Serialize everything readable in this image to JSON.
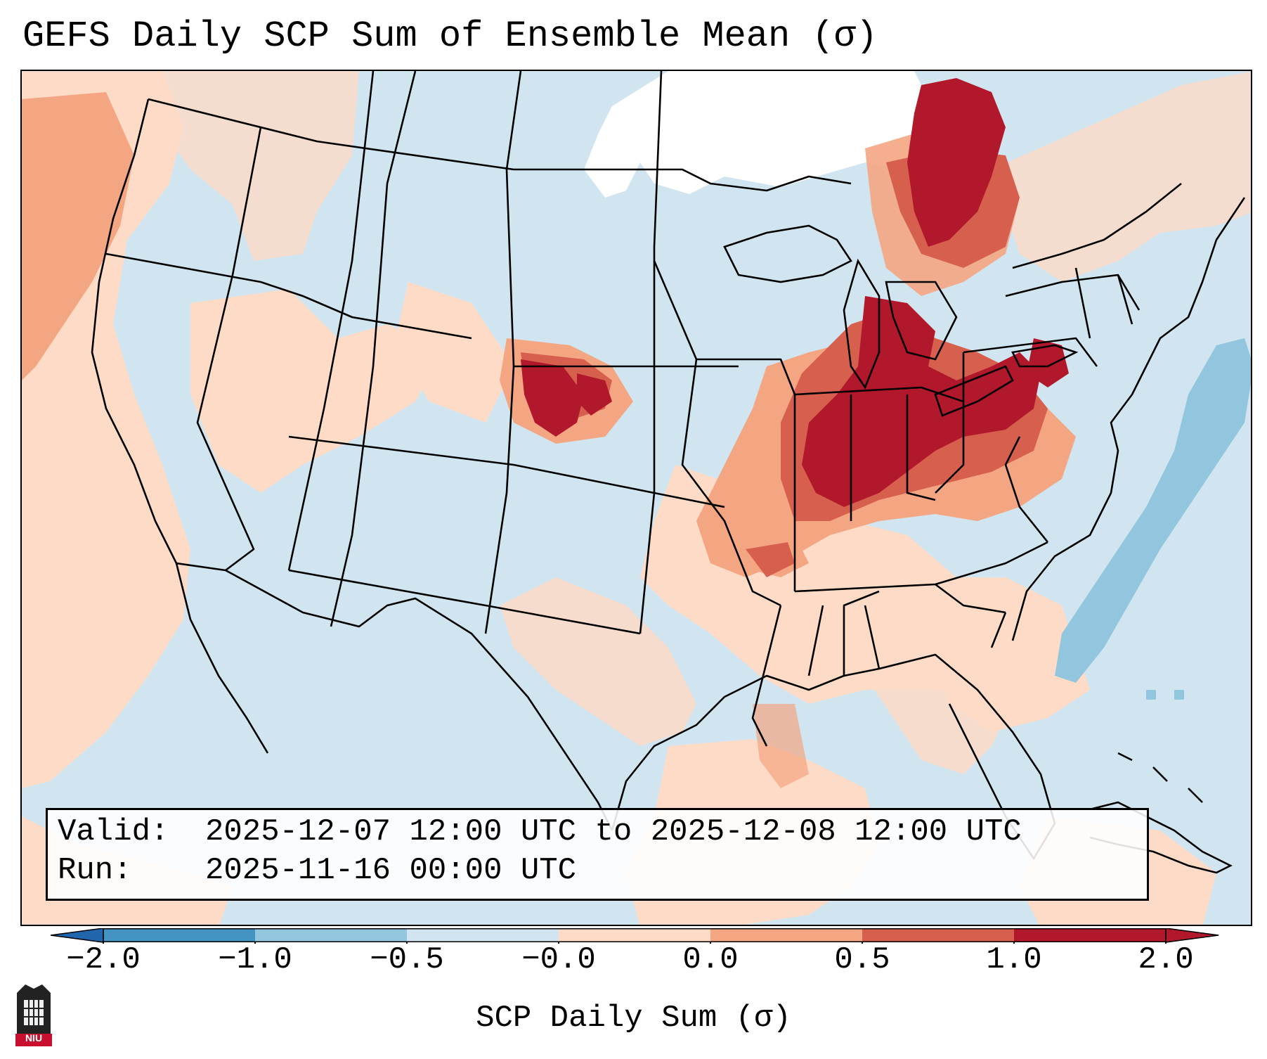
{
  "header": {
    "title": "GEFS Daily SCP Sum of Ensemble Mean (σ)"
  },
  "info": {
    "valid_label": "Valid:",
    "valid_value": "2025-12-07 12:00 UTC to 2025-12-08 12:00 UTC",
    "run_label": "Run:",
    "run_value": "2025-11-16 00:00 UTC"
  },
  "colorbar": {
    "label": "SCP Daily Sum (σ)",
    "ticks": [
      "−2.0",
      "−1.0",
      "−0.5",
      "−0.0",
      "0.0",
      "0.5",
      "1.0",
      "2.0"
    ],
    "colors": [
      "#4393c3",
      "#92c5de",
      "#d1e5f0",
      "#ffffff",
      "#fddbc7",
      "#f4a582",
      "#d6604d",
      "#b2182b"
    ],
    "extend_min_color": "#2166ac",
    "extend_max_color": "#b2182b"
  },
  "logo": {
    "text": "NIU"
  }
}
